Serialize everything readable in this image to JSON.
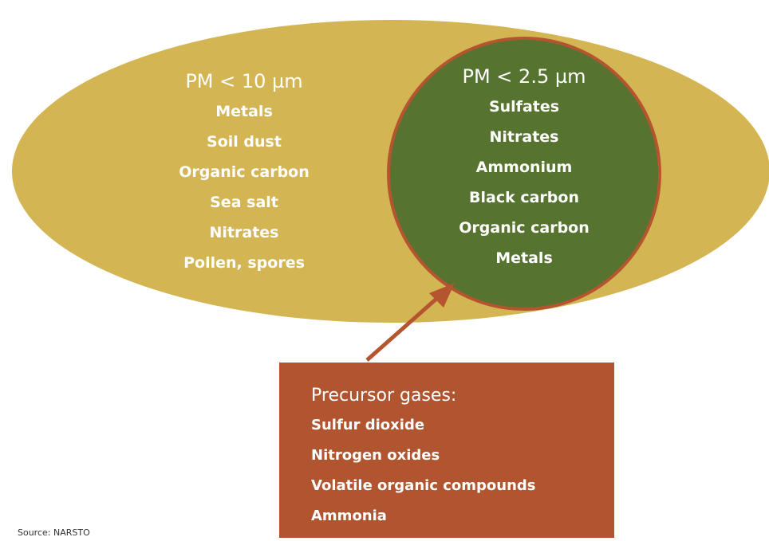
{
  "pm10": {
    "title": "PM < 10 µm",
    "items": [
      "Metals",
      "Soil dust",
      "Organic carbon",
      "Sea salt",
      "Nitrates",
      "Pollen, spores"
    ]
  },
  "pm25": {
    "title": "PM < 2.5 µm",
    "items": [
      "Sulfates",
      "Nitrates",
      "Ammonium",
      "Black carbon",
      "Organic carbon",
      "Metals"
    ]
  },
  "precursor": {
    "title": "Precursor gases:",
    "items": [
      "Sulfur  dioxide",
      "Nitrogen oxides",
      "Volatile organic compounds",
      "Ammonia"
    ]
  },
  "source": "Source: NARSTO"
}
